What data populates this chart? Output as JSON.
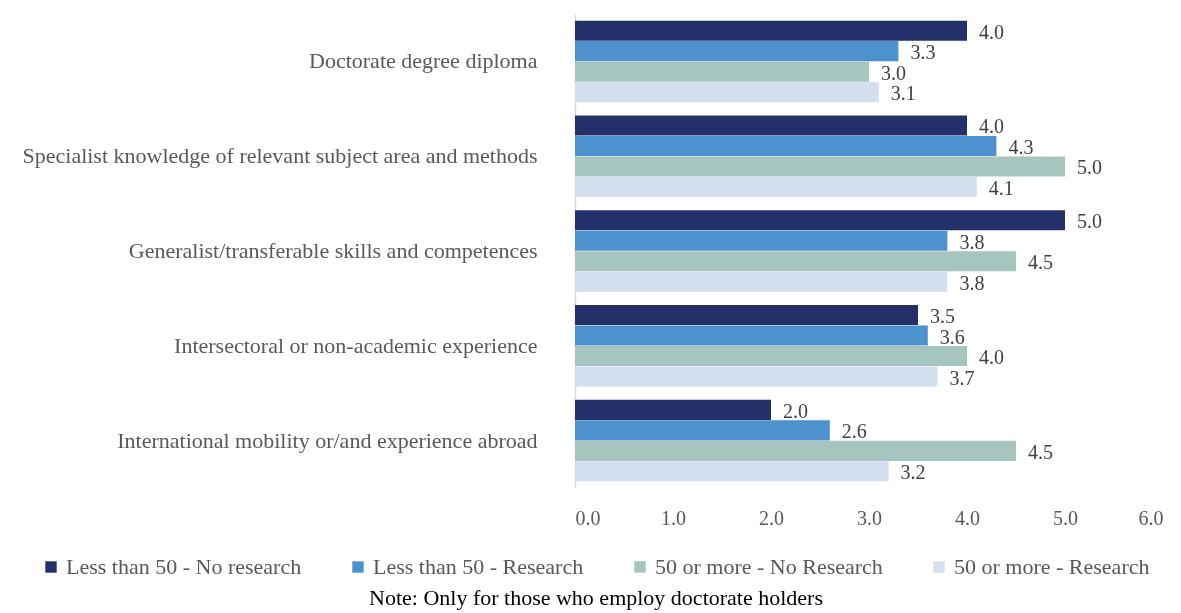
{
  "chart_data": {
    "type": "bar",
    "orientation": "horizontal",
    "categories": [
      "Doctorate degree diploma",
      "Specialist knowledge of relevant subject area and methods",
      "Generalist/transferable skills and competences",
      "Intersectoral or non-academic experience",
      "International mobility or/and experience abroad"
    ],
    "series": [
      {
        "name": "Less than 50 - No research",
        "color": "#24306a",
        "values": [
          4.0,
          4.0,
          5.0,
          3.5,
          2.0
        ],
        "value_labels": [
          "4.0",
          "4.0",
          "5.0",
          "3.5",
          "2.0"
        ]
      },
      {
        "name": "Less than 50 - Research",
        "color": "#4e91cf",
        "values": [
          3.3,
          4.3,
          3.8,
          3.6,
          2.6
        ],
        "value_labels": [
          "3.3",
          "4.3",
          "3.8",
          "3.6",
          "2.6"
        ]
      },
      {
        "name": "50 or more - No Research",
        "color": "#a7c5bf",
        "values": [
          3.0,
          5.0,
          4.5,
          4.0,
          4.5
        ],
        "value_labels": [
          "3.0",
          "5.0",
          "4.5",
          "4.0",
          "4.5"
        ]
      },
      {
        "name": "50 or more - Research",
        "color": "#d3deef",
        "values": [
          3.1,
          4.1,
          3.8,
          3.7,
          3.2
        ],
        "value_labels": [
          "3.1",
          "4.1",
          "3.8",
          "3.7",
          "3.2"
        ]
      }
    ],
    "xlim": [
      0,
      6
    ],
    "xticks": [
      {
        "value": 0,
        "label": "0.0"
      },
      {
        "value": 1,
        "label": "1.0"
      },
      {
        "value": 2,
        "label": "2.0"
      },
      {
        "value": 3,
        "label": "3.0"
      },
      {
        "value": 4,
        "label": "4.0"
      },
      {
        "value": 5,
        "label": "5.0"
      },
      {
        "value": 6,
        "label": "6.0"
      }
    ],
    "grid": false,
    "legend": "bottom",
    "annotations": [
      "Note: Only for those who employ doctorate holders"
    ]
  }
}
